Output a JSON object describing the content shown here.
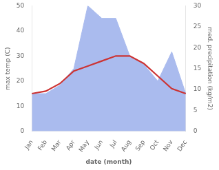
{
  "chart_data": {
    "type": "line",
    "categories": [
      "Jan",
      "Feb",
      "Mar",
      "Apr",
      "May",
      "Jun",
      "Jul",
      "Aug",
      "Sep",
      "Oct",
      "Nov",
      "Dec"
    ],
    "series": [
      {
        "type": "line",
        "color": "#cc3333",
        "values": [
          15,
          16,
          19,
          24,
          26,
          28,
          30,
          30,
          27,
          22,
          17,
          15
        ]
      },
      {
        "type": "area",
        "color": "#aabbee",
        "axis": "y2",
        "values": [
          9,
          9,
          11,
          15,
          30,
          27,
          27,
          18,
          16,
          12,
          19,
          9
        ]
      }
    ],
    "xlabel": "date (month)",
    "ylabel": "max temp (C)",
    "y2label": "med. precipitation (kg/m2)",
    "ylim": [
      0,
      50
    ],
    "yticks": [
      0,
      10,
      20,
      30,
      40,
      50
    ],
    "y2lim": [
      0,
      30
    ],
    "y2ticks": [
      0,
      5,
      10,
      15,
      20,
      25,
      30
    ],
    "grid": false
  }
}
